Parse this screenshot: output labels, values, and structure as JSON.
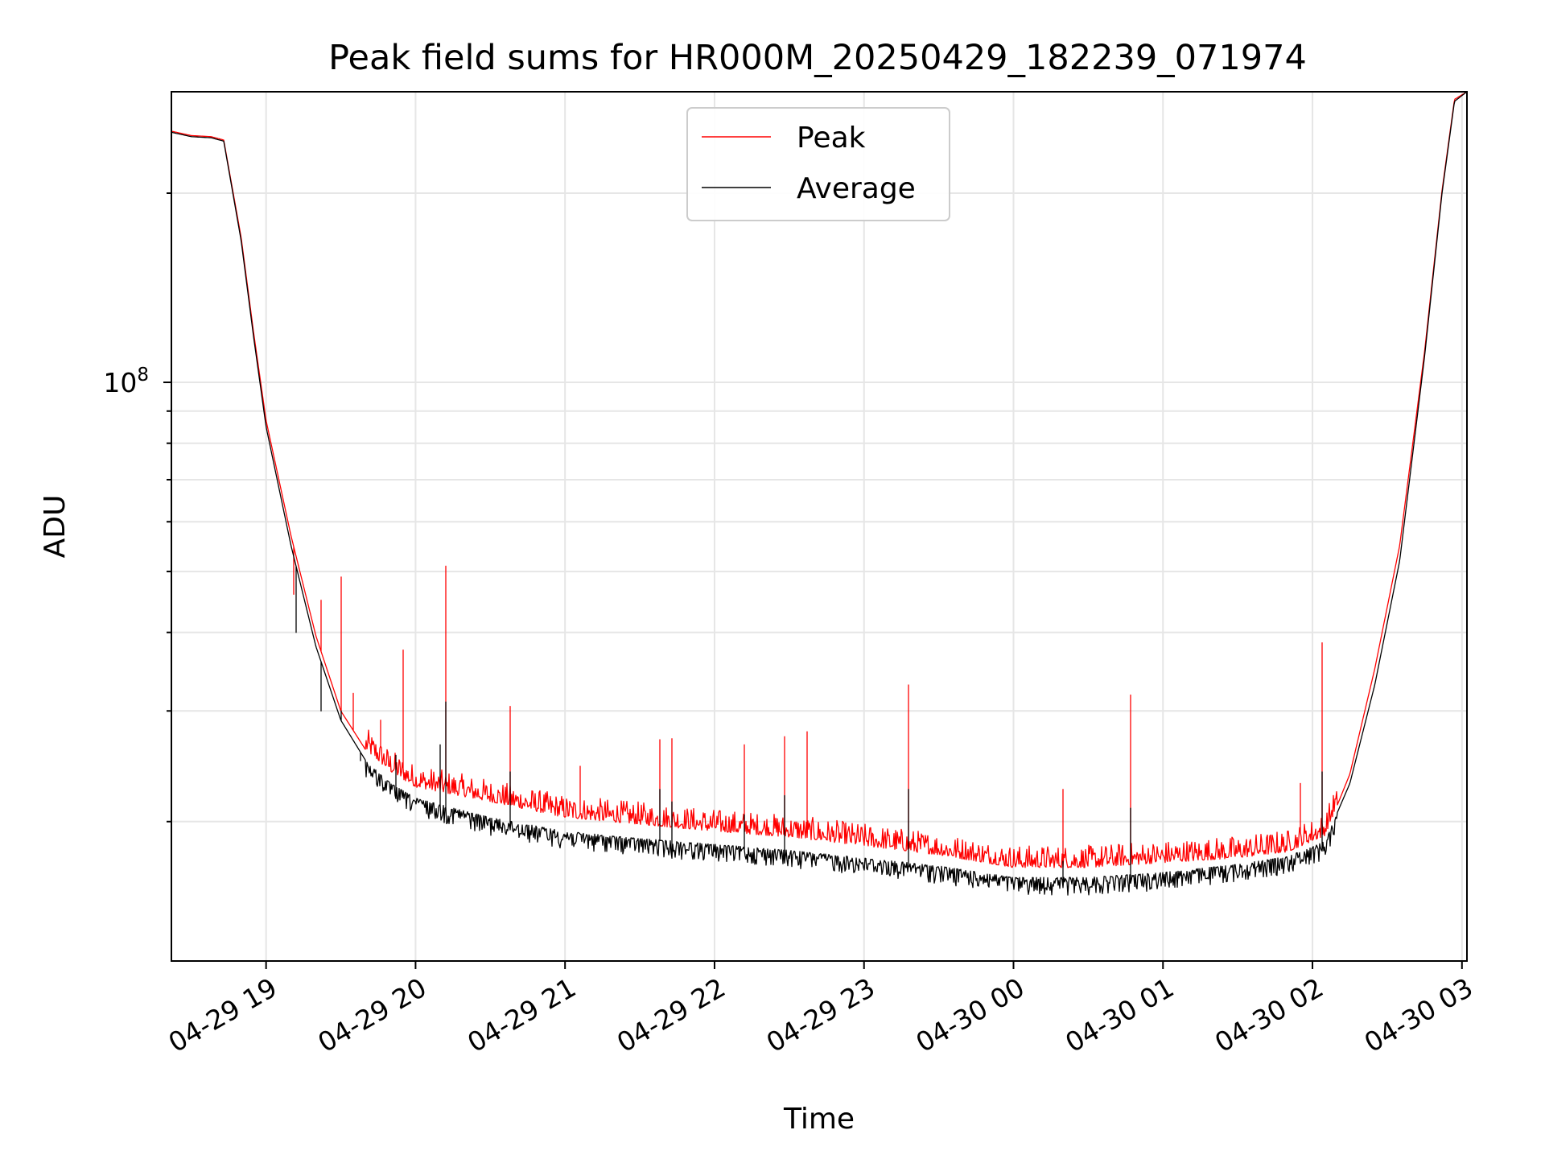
{
  "chart_data": {
    "type": "line",
    "title": "Peak field sums for HR000M_20250429_182239_071974",
    "xlabel": "Time",
    "ylabel": "ADU",
    "yscale": "log",
    "ylim": [
      12000000,
      290000000
    ],
    "xlim": [
      "04-29 18:22",
      "04-30 03:02"
    ],
    "x_ticks": [
      "04-29 19",
      "04-29 20",
      "04-29 21",
      "04-29 22",
      "04-29 23",
      "04-30 00",
      "04-30 01",
      "04-30 02",
      "04-30 03"
    ],
    "y_major_tick": {
      "value": 100000000,
      "label_base": "10",
      "label_exp": "8"
    },
    "grid": true,
    "legend": {
      "position": "top-center",
      "entries": [
        "Peak",
        "Average"
      ]
    },
    "series": [
      {
        "name": "Average",
        "color": "#000000",
        "points": [
          [
            "04-29 18:22",
            250000000
          ],
          [
            "04-29 18:30",
            246000000
          ],
          [
            "04-29 18:38",
            245000000
          ],
          [
            "04-29 18:43",
            242000000
          ],
          [
            "04-29 18:50",
            168000000
          ],
          [
            "04-29 18:55",
            118000000
          ],
          [
            "04-29 19:00",
            85000000
          ],
          [
            "04-29 19:10",
            55000000
          ],
          [
            "04-29 19:20",
            38000000
          ],
          [
            "04-29 19:30",
            29000000
          ],
          [
            "04-29 19:40",
            25000000
          ],
          [
            "04-29 19:50",
            23000000
          ],
          [
            "04-29 20:00",
            21800000
          ],
          [
            "04-29 20:30",
            20300000
          ],
          [
            "04-29 21:00",
            19300000
          ],
          [
            "04-29 21:30",
            18800000
          ],
          [
            "04-29 22:00",
            18400000
          ],
          [
            "04-29 22:30",
            18000000
          ],
          [
            "04-29 23:00",
            17500000
          ],
          [
            "04-29 23:30",
            17000000
          ],
          [
            "04-30 00:00",
            16300000
          ],
          [
            "04-30 00:30",
            16300000
          ],
          [
            "04-30 01:00",
            16600000
          ],
          [
            "04-30 01:30",
            17100000
          ],
          [
            "04-30 01:50",
            17600000
          ],
          [
            "04-30 02:05",
            18600000
          ],
          [
            "04-30 02:15",
            23000000
          ],
          [
            "04-30 02:25",
            33000000
          ],
          [
            "04-30 02:35",
            52000000
          ],
          [
            "04-30 02:45",
            110000000
          ],
          [
            "04-30 02:52",
            200000000
          ],
          [
            "04-30 02:57",
            280000000
          ],
          [
            "04-30 03:02",
            300000000
          ]
        ],
        "spikes": [
          [
            "04-29 19:12",
            40000000
          ],
          [
            "04-29 19:22",
            30000000
          ],
          [
            "04-29 19:30",
            30000000
          ],
          [
            "04-29 19:38",
            25000000
          ],
          [
            "04-29 19:52",
            25500000
          ],
          [
            "04-29 20:10",
            26500000
          ],
          [
            "04-29 20:12",
            31000000
          ],
          [
            "04-29 20:38",
            24000000
          ],
          [
            "04-29 21:38",
            22500000
          ],
          [
            "04-29 21:43",
            21500000
          ],
          [
            "04-29 22:12",
            20500000
          ],
          [
            "04-29 22:28",
            22000000
          ],
          [
            "04-29 23:18",
            22500000
          ],
          [
            "04-30 00:20",
            17300000
          ],
          [
            "04-30 00:47",
            21000000
          ],
          [
            "04-30 02:04",
            24000000
          ]
        ]
      },
      {
        "name": "Peak",
        "color": "#ff0000",
        "points": [
          [
            "04-29 18:22",
            251000000
          ],
          [
            "04-29 18:30",
            247000000
          ],
          [
            "04-29 18:38",
            246000000
          ],
          [
            "04-29 18:43",
            243000000
          ],
          [
            "04-29 18:50",
            170000000
          ],
          [
            "04-29 18:55",
            120000000
          ],
          [
            "04-29 19:00",
            87000000
          ],
          [
            "04-29 19:10",
            57000000
          ],
          [
            "04-29 19:20",
            39500000
          ],
          [
            "04-29 19:30",
            30000000
          ],
          [
            "04-29 19:40",
            26000000
          ],
          [
            "04-29 19:50",
            24000000
          ],
          [
            "04-29 20:00",
            22700000
          ],
          [
            "04-29 20:30",
            21500000
          ],
          [
            "04-29 21:00",
            20300000
          ],
          [
            "04-29 21:30",
            19800000
          ],
          [
            "04-29 22:00",
            19300000
          ],
          [
            "04-29 22:30",
            18900000
          ],
          [
            "04-29 23:00",
            18300000
          ],
          [
            "04-29 23:30",
            17700000
          ],
          [
            "04-30 00:00",
            16900000
          ],
          [
            "04-30 00:30",
            16900000
          ],
          [
            "04-30 01:00",
            17200000
          ],
          [
            "04-30 01:30",
            17500000
          ],
          [
            "04-30 01:50",
            17900000
          ],
          [
            "04-30 02:05",
            19000000
          ],
          [
            "04-30 02:15",
            23800000
          ],
          [
            "04-30 02:25",
            35000000
          ],
          [
            "04-30 02:35",
            55000000
          ],
          [
            "04-30 02:45",
            112000000
          ],
          [
            "04-30 02:52",
            202000000
          ],
          [
            "04-30 02:57",
            282000000
          ],
          [
            "04-30 03:02",
            300000000
          ]
        ],
        "spikes": [
          [
            "04-29 19:11",
            46000000
          ],
          [
            "04-29 19:22",
            45000000
          ],
          [
            "04-29 19:30",
            49000000
          ],
          [
            "04-29 19:35",
            32000000
          ],
          [
            "04-29 19:46",
            29000000
          ],
          [
            "04-29 19:55",
            37500000
          ],
          [
            "04-29 20:12",
            51000000
          ],
          [
            "04-29 20:38",
            30500000
          ],
          [
            "04-29 21:06",
            24500000
          ],
          [
            "04-29 21:38",
            27000000
          ],
          [
            "04-29 21:43",
            27100000
          ],
          [
            "04-29 22:12",
            26500000
          ],
          [
            "04-29 22:28",
            27300000
          ],
          [
            "04-29 22:37",
            27800000
          ],
          [
            "04-29 23:18",
            33000000
          ],
          [
            "04-30 00:20",
            22500000
          ],
          [
            "04-30 00:47",
            31800000
          ],
          [
            "04-30 01:55",
            23000000
          ],
          [
            "04-30 02:04",
            38500000
          ]
        ]
      }
    ]
  }
}
